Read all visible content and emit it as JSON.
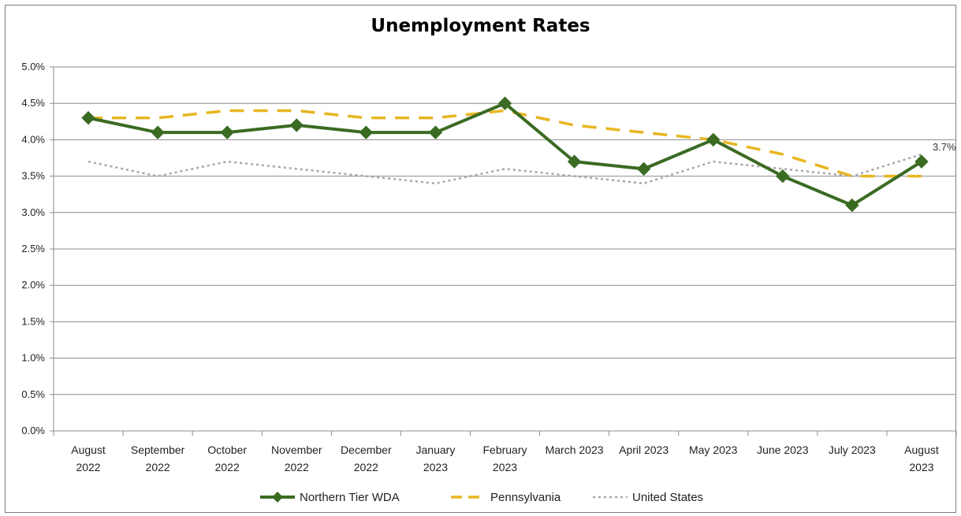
{
  "chart_data": {
    "type": "line",
    "title": "Unemployment Rates",
    "xlabel": "",
    "ylabel": "",
    "categories": [
      [
        "August",
        "2022"
      ],
      [
        "September",
        "2022"
      ],
      [
        "October",
        "2022"
      ],
      [
        "November",
        "2022"
      ],
      [
        "December",
        "2022"
      ],
      [
        "January",
        "2023"
      ],
      [
        "February",
        "2023"
      ],
      [
        "March 2023"
      ],
      [
        "April 2023"
      ],
      [
        "May 2023"
      ],
      [
        "June 2023"
      ],
      [
        "July 2023"
      ],
      [
        "August",
        "2023"
      ]
    ],
    "ylim": [
      0,
      5
    ],
    "yticks": [
      "0.0%",
      "0.5%",
      "1.0%",
      "1.5%",
      "2.0%",
      "2.5%",
      "3.0%",
      "3.5%",
      "4.0%",
      "4.5%",
      "5.0%"
    ],
    "grid": true,
    "legend_position": "bottom",
    "series": [
      {
        "name": "Northern Tier WDA",
        "style": "solid-diamond",
        "color": "#3a6b22",
        "values": [
          4.3,
          4.1,
          4.1,
          4.2,
          4.1,
          4.1,
          4.5,
          3.7,
          3.6,
          4.0,
          3.5,
          3.1,
          3.7
        ]
      },
      {
        "name": "Pennsylvania",
        "style": "dashed",
        "color": "#e8b621",
        "values": [
          4.3,
          4.3,
          4.4,
          4.4,
          4.3,
          4.3,
          4.4,
          4.2,
          4.1,
          4.0,
          3.8,
          3.5,
          3.5
        ]
      },
      {
        "name": "United States",
        "style": "dotted",
        "color": "#a6a6a6",
        "values": [
          3.7,
          3.5,
          3.7,
          3.6,
          3.5,
          3.4,
          3.6,
          3.5,
          3.4,
          3.7,
          3.6,
          3.5,
          3.8
        ]
      }
    ],
    "annotations": [
      {
        "series": "Northern Tier WDA",
        "index": 12,
        "text": "3.7%"
      }
    ]
  }
}
